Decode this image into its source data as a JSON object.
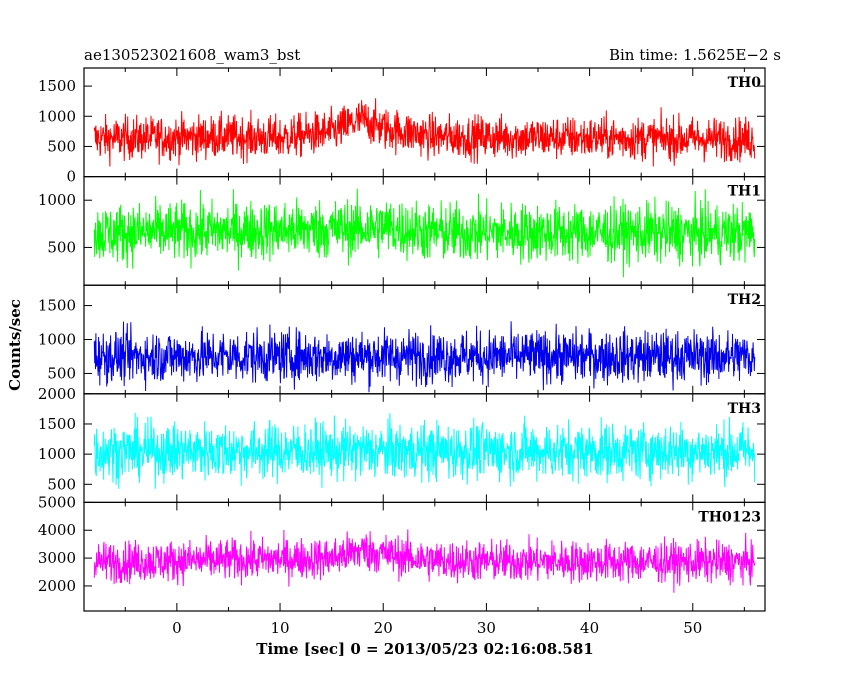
{
  "chart_data": {
    "type": "line",
    "title_left": "ae130523021608_wam3_bst",
    "title_right": "Bin time: 1.5625E−2 s",
    "xlabel": "Time [sec] 0 = 2013/05/23 02:16:08.581",
    "ylabel": "Counts/sec",
    "xlim": [
      -9,
      57
    ],
    "x_range_data": [
      -8,
      56
    ],
    "x_ticks": [
      0,
      10,
      20,
      30,
      40,
      50
    ],
    "x_tick_labels": [
      "0",
      "10",
      "20",
      "30",
      "40",
      "50"
    ],
    "bin_time_s": 0.015625,
    "grid": false,
    "panels": [
      {
        "name": "TH0",
        "color": "#ff0000",
        "ylim": [
          0,
          1800
        ],
        "y_ticks": [
          0,
          500,
          1000,
          1500
        ],
        "y_tick_labels": [
          "0",
          "500",
          "1000",
          "1500"
        ],
        "mean": 640,
        "spread": 250,
        "profile": [
          {
            "x": -8,
            "mean": 630
          },
          {
            "x": 5,
            "mean": 660
          },
          {
            "x": 10,
            "mean": 640
          },
          {
            "x": 15,
            "mean": 740
          },
          {
            "x": 18,
            "mean": 950
          },
          {
            "x": 20,
            "mean": 800
          },
          {
            "x": 25,
            "mean": 660
          },
          {
            "x": 56,
            "mean": 620
          }
        ]
      },
      {
        "name": "TH1",
        "color": "#00ff00",
        "ylim": [
          100,
          1250
        ],
        "y_ticks": [
          500,
          1000
        ],
        "y_tick_labels": [
          "500",
          "1000"
        ],
        "mean": 660,
        "spread": 220,
        "profile": [
          {
            "x": -8,
            "mean": 650
          },
          {
            "x": 18,
            "mean": 700
          },
          {
            "x": 20,
            "mean": 720
          },
          {
            "x": 25,
            "mean": 660
          },
          {
            "x": 56,
            "mean": 650
          }
        ]
      },
      {
        "name": "TH2",
        "color": "#0000ee",
        "ylim": [
          200,
          1800
        ],
        "y_ticks": [
          500,
          1000,
          1500
        ],
        "y_tick_labels": [
          "500",
          "1000",
          "1500"
        ],
        "mean": 750,
        "spread": 270,
        "profile": [
          {
            "x": -8,
            "mean": 750
          },
          {
            "x": 56,
            "mean": 750
          }
        ]
      },
      {
        "name": "TH3",
        "color": "#00ffff",
        "ylim": [
          200,
          2000
        ],
        "y_ticks": [
          500,
          1000,
          1500,
          2000
        ],
        "y_tick_labels": [
          "500",
          "1000",
          "1500",
          "2000"
        ],
        "mean": 1050,
        "spread": 330,
        "profile": [
          {
            "x": -8,
            "mean": 1050
          },
          {
            "x": 56,
            "mean": 1050
          }
        ]
      },
      {
        "name": "TH0123",
        "color": "#ff00ff",
        "ylim": [
          1100,
          5000
        ],
        "y_ticks": [
          2000,
          3000,
          4000,
          5000
        ],
        "y_tick_labels": [
          "2000",
          "3000",
          "4000",
          "5000"
        ],
        "mean": 2900,
        "spread": 520,
        "profile": [
          {
            "x": -8,
            "mean": 2850
          },
          {
            "x": 15,
            "mean": 3000
          },
          {
            "x": 18,
            "mean": 3300
          },
          {
            "x": 20,
            "mean": 3150
          },
          {
            "x": 25,
            "mean": 2900
          },
          {
            "x": 56,
            "mean": 2850
          }
        ]
      }
    ]
  }
}
